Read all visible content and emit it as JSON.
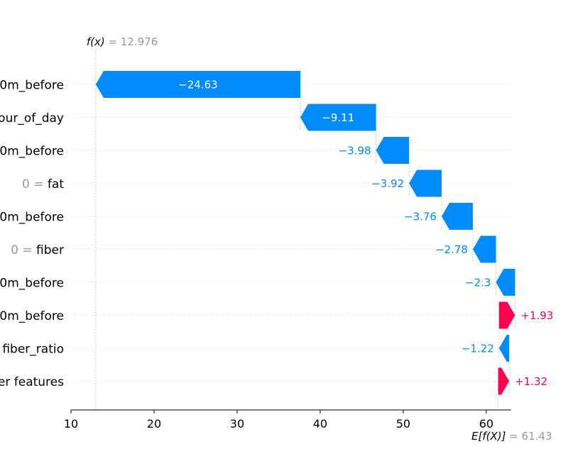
{
  "chart_data": {
    "type": "waterfall",
    "title": "",
    "xlabel": "",
    "ylabel": "",
    "xlim": [
      10,
      63
    ],
    "x_ticks": [
      "10",
      "20",
      "30",
      "40",
      "50",
      "60"
    ],
    "base_value": 61.43,
    "base_label": "E[f(X)]",
    "base_value_text": "= 61.43",
    "output_value": 12.976,
    "output_label": "f(x)",
    "output_value_text": "= 12.976",
    "features": [
      {
        "feature_value": "",
        "feature": "0m_before",
        "shap": -24.63,
        "label": "−24.63"
      },
      {
        "feature_value": "",
        "feature": "our_of_day",
        "shap": -9.11,
        "label": "−9.11"
      },
      {
        "feature_value": "",
        "feature": "0m_before",
        "shap": -3.98,
        "label": "−3.98"
      },
      {
        "feature_value": "0 =",
        "feature": "fat",
        "shap": -3.92,
        "label": "−3.92"
      },
      {
        "feature_value": "",
        "feature": "0m_before",
        "shap": -3.76,
        "label": "−3.76"
      },
      {
        "feature_value": "0 =",
        "feature": "fiber",
        "shap": -2.78,
        "label": "−2.78"
      },
      {
        "feature_value": "",
        "feature": "0m_before",
        "shap": -2.3,
        "label": "−2.3"
      },
      {
        "feature_value": "",
        "feature": "0m_before",
        "shap": 1.93,
        "label": "+1.93"
      },
      {
        "feature_value": "",
        "feature": "fiber_ratio",
        "shap": -1.22,
        "label": "−1.22"
      },
      {
        "feature_value": "",
        "feature": "er features",
        "shap": 1.32,
        "label": "+1.32"
      }
    ],
    "colors": {
      "negative": "#008bfb",
      "positive": "#ff0051",
      "value_text": "#999999"
    }
  }
}
